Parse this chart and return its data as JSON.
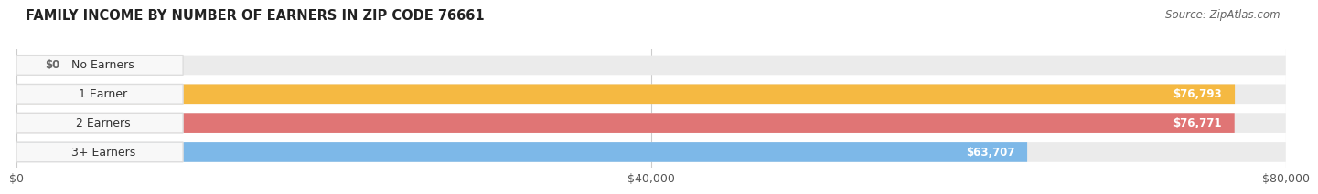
{
  "title": "FAMILY INCOME BY NUMBER OF EARNERS IN ZIP CODE 76661",
  "source": "Source: ZipAtlas.com",
  "categories": [
    "No Earners",
    "1 Earner",
    "2 Earners",
    "3+ Earners"
  ],
  "values": [
    0,
    76793,
    76771,
    63707
  ],
  "labels": [
    "$0",
    "$76,793",
    "$76,771",
    "$63,707"
  ],
  "bar_colors": [
    "#f4a5b8",
    "#f5b942",
    "#e07575",
    "#7db8e8"
  ],
  "bar_bg_color": "#ebebeb",
  "xlim": [
    0,
    80000
  ],
  "xtick_labels": [
    "$0",
    "$40,000",
    "$80,000"
  ],
  "xtick_values": [
    0,
    40000,
    80000
  ],
  "title_fontsize": 10.5,
  "source_fontsize": 8.5,
  "label_fontsize": 8.5,
  "category_fontsize": 9,
  "background_color": "#ffffff",
  "bar_height": 0.68,
  "label_inside_color": "#ffffff",
  "label_outside_color": "#666666",
  "pill_bg": "#f8f8f8",
  "pill_edge": "#dddddd",
  "grid_color": "#cccccc"
}
